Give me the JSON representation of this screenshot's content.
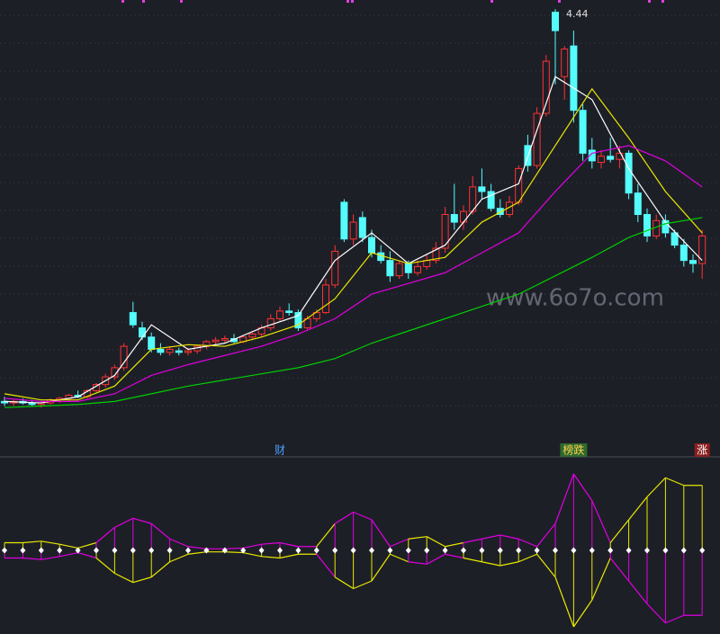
{
  "chart_data": [
    {
      "type": "candlestick",
      "ylim": [
        1.8,
        4.5
      ],
      "watermark": "www.6o7o.com",
      "candles": [
        [
          1.88,
          1.91,
          1.85,
          1.87
        ],
        [
          1.87,
          1.89,
          1.85,
          1.88
        ],
        [
          1.88,
          1.9,
          1.86,
          1.87
        ],
        [
          1.87,
          1.89,
          1.85,
          1.86
        ],
        [
          1.86,
          1.88,
          1.84,
          1.87
        ],
        [
          1.87,
          1.9,
          1.86,
          1.89
        ],
        [
          1.89,
          1.91,
          1.87,
          1.9
        ],
        [
          1.9,
          1.93,
          1.88,
          1.92
        ],
        [
          1.92,
          1.95,
          1.9,
          1.91
        ],
        [
          1.91,
          1.96,
          1.9,
          1.95
        ],
        [
          1.95,
          2.0,
          1.94,
          1.99
        ],
        [
          1.99,
          2.06,
          1.97,
          2.04
        ],
        [
          2.04,
          2.12,
          2.02,
          2.1
        ],
        [
          2.1,
          2.26,
          2.08,
          2.24
        ],
        [
          2.46,
          2.53,
          2.36,
          2.38
        ],
        [
          2.36,
          2.4,
          2.28,
          2.3
        ],
        [
          2.3,
          2.33,
          2.2,
          2.22
        ],
        [
          2.22,
          2.26,
          2.18,
          2.2
        ],
        [
          2.2,
          2.24,
          2.18,
          2.22
        ],
        [
          2.21,
          2.23,
          2.18,
          2.2
        ],
        [
          2.2,
          2.23,
          2.18,
          2.21
        ],
        [
          2.21,
          2.25,
          2.19,
          2.24
        ],
        [
          2.24,
          2.28,
          2.22,
          2.27
        ],
        [
          2.27,
          2.3,
          2.25,
          2.28
        ],
        [
          2.28,
          2.31,
          2.26,
          2.29
        ],
        [
          2.29,
          2.32,
          2.26,
          2.27
        ],
        [
          2.27,
          2.31,
          2.26,
          2.3
        ],
        [
          2.3,
          2.33,
          2.28,
          2.32
        ],
        [
          2.32,
          2.38,
          2.3,
          2.36
        ],
        [
          2.36,
          2.45,
          2.34,
          2.42
        ],
        [
          2.42,
          2.5,
          2.4,
          2.47
        ],
        [
          2.47,
          2.52,
          2.44,
          2.46
        ],
        [
          2.46,
          2.48,
          2.34,
          2.36
        ],
        [
          2.36,
          2.44,
          2.35,
          2.42
        ],
        [
          2.42,
          2.48,
          2.4,
          2.46
        ],
        [
          2.46,
          2.68,
          2.45,
          2.64
        ],
        [
          2.64,
          2.9,
          2.62,
          2.86
        ],
        [
          3.18,
          3.2,
          2.92,
          2.94
        ],
        [
          2.94,
          3.1,
          2.9,
          3.05
        ],
        [
          3.08,
          3.12,
          2.92,
          2.95
        ],
        [
          2.95,
          3.0,
          2.82,
          2.85
        ],
        [
          2.85,
          2.9,
          2.78,
          2.8
        ],
        [
          2.8,
          2.86,
          2.66,
          2.7
        ],
        [
          2.7,
          2.8,
          2.68,
          2.78
        ],
        [
          2.78,
          2.8,
          2.68,
          2.72
        ],
        [
          2.72,
          2.8,
          2.7,
          2.76
        ],
        [
          2.76,
          2.84,
          2.74,
          2.8
        ],
        [
          2.8,
          2.92,
          2.78,
          2.88
        ],
        [
          2.88,
          3.15,
          2.85,
          3.1
        ],
        [
          3.1,
          3.3,
          3.0,
          3.05
        ],
        [
          3.05,
          3.16,
          3.0,
          3.12
        ],
        [
          3.12,
          3.35,
          3.1,
          3.28
        ],
        [
          3.28,
          3.4,
          3.2,
          3.25
        ],
        [
          3.25,
          3.3,
          3.12,
          3.14
        ],
        [
          3.14,
          3.2,
          3.08,
          3.1
        ],
        [
          3.1,
          3.22,
          3.08,
          3.18
        ],
        [
          3.18,
          3.42,
          3.16,
          3.4
        ],
        [
          3.55,
          3.62,
          3.38,
          3.42
        ],
        [
          3.42,
          3.8,
          3.4,
          3.76
        ],
        [
          3.76,
          4.14,
          3.74,
          4.1
        ],
        [
          4.42,
          4.44,
          3.95,
          4.3
        ],
        [
          4.0,
          4.2,
          3.85,
          4.18
        ],
        [
          4.2,
          4.3,
          3.7,
          3.78
        ],
        [
          3.78,
          3.82,
          3.45,
          3.5
        ],
        [
          3.52,
          3.6,
          3.4,
          3.45
        ],
        [
          3.44,
          3.52,
          3.4,
          3.48
        ],
        [
          3.48,
          3.6,
          3.44,
          3.46
        ],
        [
          3.46,
          3.55,
          3.4,
          3.5
        ],
        [
          3.5,
          3.52,
          3.2,
          3.24
        ],
        [
          3.24,
          3.3,
          3.05,
          3.1
        ],
        [
          3.1,
          3.14,
          2.92,
          2.96
        ],
        [
          2.96,
          3.1,
          2.94,
          3.06
        ],
        [
          3.06,
          3.1,
          2.95,
          2.98
        ],
        [
          2.98,
          3.0,
          2.88,
          2.9
        ],
        [
          2.9,
          2.94,
          2.76,
          2.8
        ],
        [
          2.8,
          2.84,
          2.72,
          2.78
        ],
        [
          2.78,
          3.0,
          2.68,
          2.96
        ]
      ],
      "up_color": "#ff3232",
      "down_color": "#54fcfc",
      "max_index": 60,
      "x": [
        0,
        4,
        8,
        12,
        16,
        20,
        24,
        28,
        32,
        36,
        40,
        44,
        48,
        52,
        56,
        60,
        64,
        68,
        72,
        76
      ],
      "series": [
        {
          "color": "#ffffff",
          "values": [
            1.88,
            1.87,
            1.91,
            2.05,
            2.38,
            2.22,
            2.26,
            2.36,
            2.44,
            2.8,
            2.98,
            2.78,
            2.9,
            3.2,
            3.3,
            4.0,
            3.85,
            3.4,
            3.05,
            2.8
          ]
        },
        {
          "color": "#e8e800",
          "values": [
            1.93,
            1.89,
            1.89,
            1.98,
            2.22,
            2.25,
            2.24,
            2.3,
            2.38,
            2.55,
            2.85,
            2.78,
            2.82,
            3.05,
            3.18,
            3.55,
            3.92,
            3.6,
            3.25,
            2.98
          ]
        },
        {
          "color": "#e000e0",
          "values": [
            1.9,
            1.88,
            1.88,
            1.93,
            2.05,
            2.12,
            2.18,
            2.24,
            2.32,
            2.42,
            2.58,
            2.65,
            2.72,
            2.85,
            2.98,
            3.25,
            3.5,
            3.55,
            3.45,
            3.28
          ]
        },
        {
          "color": "#00d000",
          "values": [
            1.84,
            1.85,
            1.86,
            1.88,
            1.93,
            1.98,
            2.02,
            2.06,
            2.1,
            2.16,
            2.26,
            2.34,
            2.42,
            2.5,
            2.58,
            2.7,
            2.82,
            2.95,
            3.04,
            3.08
          ]
        }
      ],
      "markers": [
        {
          "index": 30,
          "label": "财",
          "color": "#4aa0ff",
          "bg": "none"
        },
        {
          "index": 62,
          "label": "榜跌",
          "color": "#ffd24a",
          "bg": "#2f6a2f"
        },
        {
          "index": 76,
          "label": "涨",
          "color": "#ffffff",
          "bg": "#8a1f1f"
        }
      ]
    },
    {
      "type": "oscillator",
      "ylim": [
        -1,
        1
      ],
      "positive_color": "#e8e800",
      "negative_color": "#e000e0",
      "x": [
        0,
        2,
        4,
        6,
        8,
        10,
        12,
        14,
        16,
        18,
        20,
        22,
        24,
        26,
        28,
        30,
        32,
        34,
        36,
        38,
        40,
        42,
        44,
        46,
        48,
        50,
        52,
        54,
        56,
        58,
        60,
        62,
        64,
        66,
        68,
        70,
        72,
        74,
        76
      ],
      "values": [
        0.1,
        0.1,
        0.12,
        0.08,
        0.03,
        -0.1,
        -0.3,
        -0.42,
        -0.35,
        -0.15,
        -0.05,
        -0.02,
        -0.02,
        -0.03,
        -0.08,
        -0.1,
        -0.05,
        0.05,
        -0.35,
        -0.5,
        -0.4,
        -0.05,
        0.15,
        0.18,
        0.05,
        -0.1,
        -0.15,
        -0.2,
        -0.15,
        -0.05,
        -0.35,
        -1.0,
        -0.65,
        0.1,
        0.4,
        0.7,
        0.95,
        0.85,
        0.85
      ]
    }
  ]
}
